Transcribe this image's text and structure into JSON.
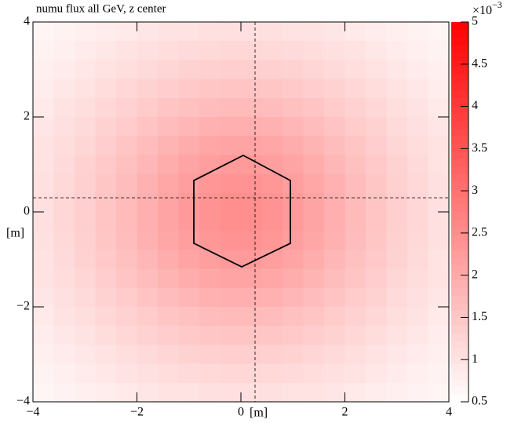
{
  "chart_data": {
    "type": "heatmap",
    "title": "numu flux all GeV, z center",
    "x_label": "[m]",
    "y_label": "[m]",
    "xlim": [
      -4,
      4
    ],
    "ylim": [
      -4,
      4
    ],
    "zlim": [
      0.5,
      5
    ],
    "xticks": [
      {
        "value": -4,
        "label": "−4"
      },
      {
        "value": -2,
        "label": "−2"
      },
      0,
      2,
      4
    ],
    "yticks": [
      {
        "value": -4,
        "label": "−4"
      },
      {
        "value": -2,
        "label": "−2"
      },
      0,
      2,
      4
    ],
    "zticks": [
      0.5,
      1,
      1.5,
      2,
      2.5,
      3,
      3.5,
      4,
      4.5,
      5
    ],
    "z_multiplier": {
      "base": "×10",
      "exponent": "−3"
    },
    "color_low": "#ffffff",
    "color_high": "#ff0000",
    "z": [
      [
        0.67,
        0.73,
        0.78,
        0.84,
        0.89,
        0.94,
        0.99,
        1.02,
        1.05,
        1.06,
        1.06,
        1.05,
        1.02,
        0.99,
        0.94,
        0.89,
        0.84,
        0.78,
        0.73,
        0.67
      ],
      [
        0.73,
        0.79,
        0.85,
        0.92,
        0.99,
        1.05,
        1.1,
        1.15,
        1.18,
        1.2,
        1.2,
        1.18,
        1.15,
        1.1,
        1.05,
        0.99,
        0.92,
        0.85,
        0.79,
        0.73
      ],
      [
        0.78,
        0.85,
        0.93,
        1.01,
        1.09,
        1.16,
        1.23,
        1.29,
        1.33,
        1.35,
        1.35,
        1.33,
        1.29,
        1.23,
        1.16,
        1.09,
        1.01,
        0.93,
        0.85,
        0.78
      ],
      [
        0.84,
        0.92,
        1.01,
        1.1,
        1.2,
        1.29,
        1.38,
        1.45,
        1.5,
        1.53,
        1.53,
        1.5,
        1.45,
        1.38,
        1.29,
        1.2,
        1.1,
        1.01,
        0.92,
        0.84
      ],
      [
        0.89,
        0.99,
        1.09,
        1.2,
        1.31,
        1.42,
        1.53,
        1.62,
        1.68,
        1.72,
        1.72,
        1.68,
        1.62,
        1.53,
        1.42,
        1.31,
        1.2,
        1.09,
        0.99,
        0.89
      ],
      [
        0.94,
        1.05,
        1.16,
        1.29,
        1.42,
        1.56,
        1.68,
        1.79,
        1.87,
        1.91,
        1.91,
        1.87,
        1.79,
        1.68,
        1.56,
        1.42,
        1.29,
        1.16,
        1.05,
        0.94
      ],
      [
        0.99,
        1.1,
        1.23,
        1.38,
        1.53,
        1.68,
        1.83,
        1.96,
        2.05,
        2.11,
        2.11,
        2.05,
        1.96,
        1.83,
        1.68,
        1.53,
        1.38,
        1.23,
        1.1,
        0.99
      ],
      [
        1.02,
        1.15,
        1.29,
        1.45,
        1.62,
        1.79,
        1.96,
        2.11,
        2.22,
        2.28,
        2.28,
        2.22,
        2.11,
        1.96,
        1.79,
        1.62,
        1.45,
        1.29,
        1.15,
        1.02
      ],
      [
        1.05,
        1.18,
        1.33,
        1.5,
        1.68,
        1.87,
        2.05,
        2.22,
        2.34,
        2.41,
        2.41,
        2.34,
        2.22,
        2.05,
        1.87,
        1.68,
        1.5,
        1.33,
        1.18,
        1.05
      ],
      [
        1.06,
        1.2,
        1.35,
        1.53,
        1.72,
        1.91,
        2.11,
        2.28,
        2.41,
        2.48,
        2.48,
        2.41,
        2.28,
        2.11,
        1.91,
        1.72,
        1.53,
        1.35,
        1.2,
        1.06
      ],
      [
        1.06,
        1.2,
        1.35,
        1.53,
        1.72,
        1.91,
        2.11,
        2.28,
        2.41,
        2.48,
        2.48,
        2.41,
        2.28,
        2.11,
        1.91,
        1.72,
        1.53,
        1.35,
        1.2,
        1.06
      ],
      [
        1.05,
        1.18,
        1.33,
        1.5,
        1.68,
        1.87,
        2.05,
        2.22,
        2.34,
        2.41,
        2.41,
        2.34,
        2.22,
        2.05,
        1.87,
        1.68,
        1.5,
        1.33,
        1.18,
        1.05
      ],
      [
        1.02,
        1.15,
        1.29,
        1.45,
        1.62,
        1.79,
        1.96,
        2.11,
        2.22,
        2.28,
        2.28,
        2.22,
        2.11,
        1.96,
        1.79,
        1.62,
        1.45,
        1.29,
        1.15,
        1.02
      ],
      [
        0.99,
        1.1,
        1.23,
        1.38,
        1.53,
        1.68,
        1.83,
        1.96,
        2.05,
        2.11,
        2.11,
        2.05,
        1.96,
        1.83,
        1.68,
        1.53,
        1.38,
        1.23,
        1.1,
        0.99
      ],
      [
        0.94,
        1.05,
        1.16,
        1.29,
        1.42,
        1.56,
        1.68,
        1.79,
        1.87,
        1.91,
        1.91,
        1.87,
        1.79,
        1.68,
        1.56,
        1.42,
        1.29,
        1.16,
        1.05,
        0.94
      ],
      [
        0.89,
        0.99,
        1.09,
        1.2,
        1.31,
        1.42,
        1.53,
        1.62,
        1.68,
        1.72,
        1.72,
        1.68,
        1.62,
        1.53,
        1.42,
        1.31,
        1.2,
        1.09,
        0.99,
        0.89
      ],
      [
        0.84,
        0.92,
        1.01,
        1.1,
        1.2,
        1.29,
        1.38,
        1.45,
        1.5,
        1.53,
        1.53,
        1.5,
        1.45,
        1.38,
        1.29,
        1.2,
        1.1,
        1.01,
        0.92,
        0.84
      ],
      [
        0.78,
        0.85,
        0.93,
        1.01,
        1.09,
        1.16,
        1.23,
        1.29,
        1.33,
        1.35,
        1.35,
        1.33,
        1.29,
        1.23,
        1.16,
        1.09,
        1.01,
        0.93,
        0.85,
        0.78
      ],
      [
        0.73,
        0.79,
        0.85,
        0.92,
        0.99,
        1.05,
        1.1,
        1.15,
        1.18,
        1.2,
        1.2,
        1.18,
        1.15,
        1.1,
        1.05,
        0.99,
        0.92,
        0.85,
        0.79,
        0.73
      ],
      [
        0.67,
        0.73,
        0.78,
        0.84,
        0.89,
        0.94,
        0.99,
        1.02,
        1.05,
        1.06,
        1.06,
        1.05,
        1.02,
        0.99,
        0.94,
        0.89,
        0.84,
        0.78,
        0.73,
        0.67
      ]
    ]
  }
}
